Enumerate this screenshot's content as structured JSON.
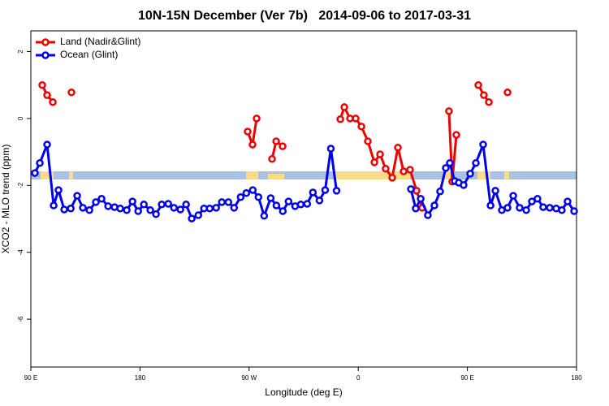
{
  "chart_data": {
    "type": "line",
    "title": "10N-15N December (Ver 7b)   2014-09-06 to 2017-03-31",
    "x_label": "Longitude (deg E)",
    "y_label": "XCO2 - MLO trend (ppm)",
    "xlim": [
      90,
      540
    ],
    "ylim": [
      -7.43,
      2.62
    ],
    "xticks": [
      {
        "value": 90,
        "label": "90 E"
      },
      180,
      {
        "value": 270,
        "label": "90 W"
      },
      {
        "value": 360,
        "label": "0"
      },
      {
        "value": 450,
        "label": "90 E"
      },
      {
        "value": 540,
        "label": "180"
      }
    ],
    "yticks": [
      2,
      0,
      -2,
      -4,
      -6
    ],
    "legend": "top-left",
    "series": [
      {
        "name": "Land (Nadir&Glint)",
        "color": "#ee0000",
        "x": [
          99.4,
          103.4,
          108.1,
          null,
          123.5,
          null,
          268.8,
          272.8,
          276.2,
          null,
          288.9,
          292.3,
          297.6,
          null,
          345.2,
          348.5,
          353.2,
          357.9,
          362.6,
          367.9,
          373.3,
          378.0,
          382.6,
          388.0,
          392.7,
          397.4,
          402.7,
          408.1,
          412.7,
          null,
          434.8,
          437.5,
          440.9,
          null,
          459.0,
          463.6,
          467.7,
          null,
          483.1
        ],
        "values": [
          1.0,
          0.7,
          0.49,
          null,
          0.78,
          null,
          -0.39,
          -0.78,
          0.0,
          null,
          -1.21,
          -0.68,
          -0.83,
          null,
          -0.02,
          0.34,
          0.0,
          0.0,
          -0.24,
          -0.68,
          -1.31,
          -1.07,
          -1.5,
          -1.77,
          -0.87,
          -1.58,
          -1.53,
          -2.16,
          -2.67,
          null,
          0.22,
          -1.89,
          -0.49,
          null,
          1.0,
          0.7,
          0.49,
          null,
          0.78
        ]
      },
      {
        "name": "Ocean (Glint)",
        "color": "#0000ee",
        "x": [
          93.3,
          97.4,
          103.4,
          108.8,
          112.8,
          117.5,
          122.9,
          128.2,
          132.9,
          138.3,
          143.6,
          148.3,
          153.7,
          159.0,
          163.7,
          169.1,
          173.8,
          178.5,
          183.2,
          188.5,
          193.2,
          197.9,
          203.3,
          208.0,
          213.3,
          218.0,
          222.7,
          228.1,
          232.8,
          237.5,
          242.8,
          247.5,
          252.9,
          257.6,
          263.0,
          267.7,
          273.0,
          277.7,
          282.4,
          287.8,
          292.5,
          297.8,
          302.5,
          307.9,
          312.6,
          317.9,
          322.6,
          328.0,
          332.7,
          337.4,
          342.1,
          null,
          403.4,
          407.4,
          411.5,
          417.4,
          422.8,
          427.5,
          432.2,
          435.5,
          439.6,
          442.9,
          446.9,
          452.3,
          457.0,
          463.0,
          469.1,
          473.1,
          478.4,
          483.1,
          487.8,
          493.1,
          498.5,
          503.2,
          507.8,
          512.5,
          517.9,
          523.2,
          527.9,
          532.6,
          538.0
        ],
        "values": [
          -1.63,
          -1.33,
          -0.78,
          -2.6,
          -2.14,
          -2.72,
          -2.69,
          -2.31,
          -2.67,
          -2.74,
          -2.5,
          -2.4,
          -2.62,
          -2.65,
          -2.69,
          -2.74,
          -2.48,
          -2.77,
          -2.57,
          -2.74,
          -2.86,
          -2.57,
          -2.55,
          -2.67,
          -2.72,
          -2.57,
          -2.99,
          -2.89,
          -2.69,
          -2.69,
          -2.67,
          -2.5,
          -2.5,
          -2.67,
          -2.35,
          -2.23,
          -2.14,
          -2.35,
          -2.91,
          -2.38,
          -2.6,
          -2.77,
          -2.48,
          -2.62,
          -2.57,
          -2.55,
          -2.21,
          -2.45,
          -2.14,
          -0.9,
          -2.16,
          null,
          -2.11,
          -2.69,
          -2.4,
          -2.89,
          -2.6,
          -2.18,
          -1.48,
          -1.33,
          -1.87,
          -1.92,
          -1.99,
          -1.65,
          -1.33,
          -0.78,
          -2.6,
          -2.16,
          -2.74,
          -2.67,
          -2.31,
          -2.67,
          -2.74,
          -2.48,
          -2.4,
          -2.65,
          -2.67,
          -2.69,
          -2.74,
          -2.48,
          -2.77
        ]
      }
    ]
  }
}
